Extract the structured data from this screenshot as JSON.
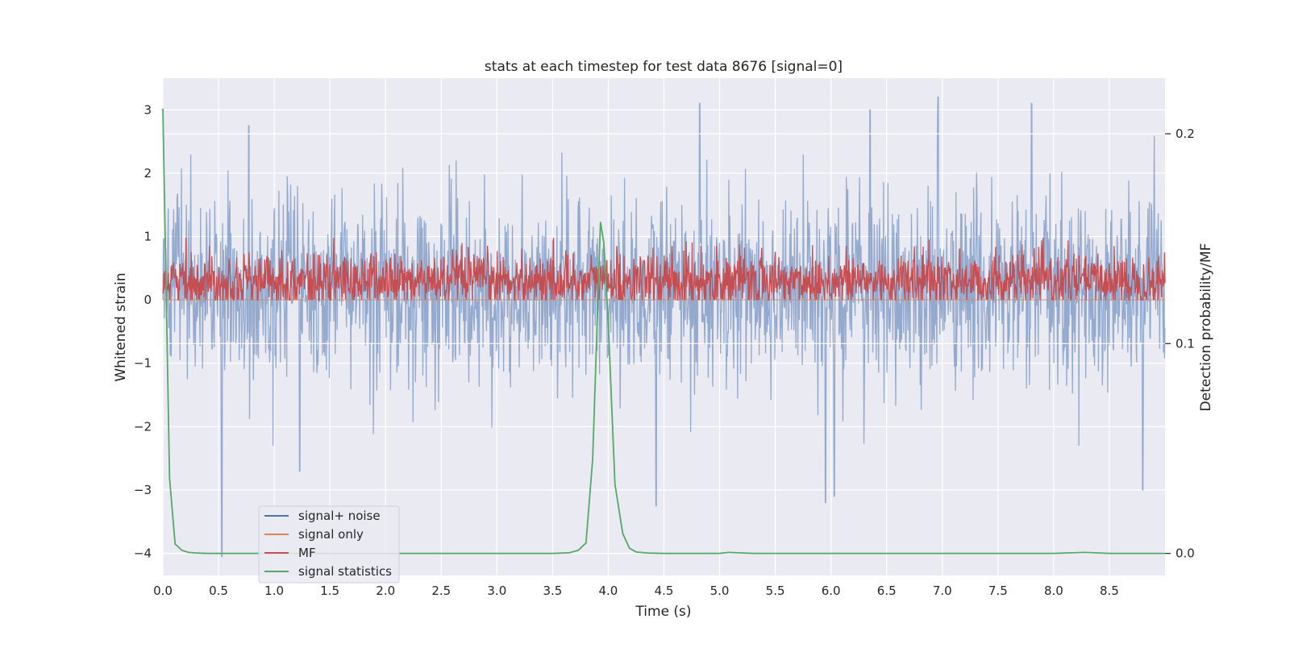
{
  "chart_data": {
    "type": "line",
    "title": "stats at each timestep for test data 8676 [signal=0]",
    "xlabel": "Time (s)",
    "ylabel": "Whitened strain",
    "ylabel_right": "Detection probability/MF",
    "xlim": [
      0.0,
      9.0
    ],
    "ylim": [
      -4.35,
      3.5
    ],
    "ylim_right": [
      -0.0105,
      0.2265
    ],
    "x_ticks": [
      "0.0",
      "0.5",
      "1.0",
      "1.5",
      "2.0",
      "2.5",
      "3.0",
      "3.5",
      "4.0",
      "4.5",
      "5.0",
      "5.5",
      "6.0",
      "6.5",
      "7.0",
      "7.5",
      "8.0",
      "8.5"
    ],
    "x_tick_values": [
      0.0,
      0.5,
      1.0,
      1.5,
      2.0,
      2.5,
      3.0,
      3.5,
      4.0,
      4.5,
      5.0,
      5.5,
      6.0,
      6.5,
      7.0,
      7.5,
      8.0,
      8.5
    ],
    "y_ticks": [
      "3",
      "2",
      "1",
      "0",
      "−1",
      "−2",
      "−3",
      "−4"
    ],
    "y_tick_values": [
      3,
      2,
      1,
      0,
      -1,
      -2,
      -3,
      -4
    ],
    "y_ticks_right": [
      "0.2",
      "0.1",
      "0.0"
    ],
    "y_tick_values_right": [
      0.2,
      0.1,
      0.0
    ],
    "grid": true,
    "legend_position": "lower-left",
    "background": "#eaeaf2",
    "series": [
      {
        "name": "signal+ noise",
        "color": "#4c72b0",
        "axis": "left",
        "kind": "dense-noise",
        "samples": 2048,
        "typical_min": -1.5,
        "typical_max": 2.3,
        "notable_peaks": [
          {
            "x": 0.53,
            "y": -4.05
          },
          {
            "x": 0.77,
            "y": 2.75
          },
          {
            "x": 1.23,
            "y": -2.7
          },
          {
            "x": 4.43,
            "y": -3.25
          },
          {
            "x": 4.82,
            "y": 3.1
          },
          {
            "x": 5.95,
            "y": -3.2
          },
          {
            "x": 6.03,
            "y": -3.1
          },
          {
            "x": 6.35,
            "y": 3.0
          },
          {
            "x": 6.96,
            "y": 3.2
          },
          {
            "x": 7.8,
            "y": 3.1
          },
          {
            "x": 8.8,
            "y": -3.0
          }
        ]
      },
      {
        "name": "signal only",
        "color": "#dd8452",
        "axis": "left",
        "x": [
          0.0,
          9.0
        ],
        "values": [
          0.0,
          0.0
        ]
      },
      {
        "name": "MF",
        "color": "#c44e52",
        "axis": "left",
        "kind": "dense-noise",
        "samples": 2048,
        "typical_min": 0.0,
        "typical_max": 0.9
      },
      {
        "name": "signal statistics",
        "color": "#55a868",
        "axis": "right",
        "x": [
          0.0,
          0.06,
          0.11,
          0.17,
          0.23,
          0.3,
          0.4,
          0.5,
          1.0,
          2.0,
          3.0,
          3.5,
          3.65,
          3.73,
          3.8,
          3.86,
          3.93,
          3.96,
          4.0,
          4.06,
          4.13,
          4.19,
          4.25,
          4.35,
          4.5,
          5.0,
          5.08,
          5.3,
          6.0,
          7.0,
          8.0,
          8.28,
          8.5,
          9.0
        ],
        "values": [
          0.212,
          0.036,
          0.0045,
          0.0015,
          0.0005,
          0.0002,
          0.0,
          0.0,
          0.0,
          0.0,
          0.0,
          0.0,
          0.0003,
          0.0015,
          0.005,
          0.045,
          0.158,
          0.148,
          0.11,
          0.033,
          0.0095,
          0.0025,
          0.0007,
          0.0002,
          0.0,
          0.0,
          0.0005,
          0.0,
          0.0,
          0.0,
          0.0,
          0.0005,
          0.0,
          0.0
        ]
      }
    ]
  }
}
